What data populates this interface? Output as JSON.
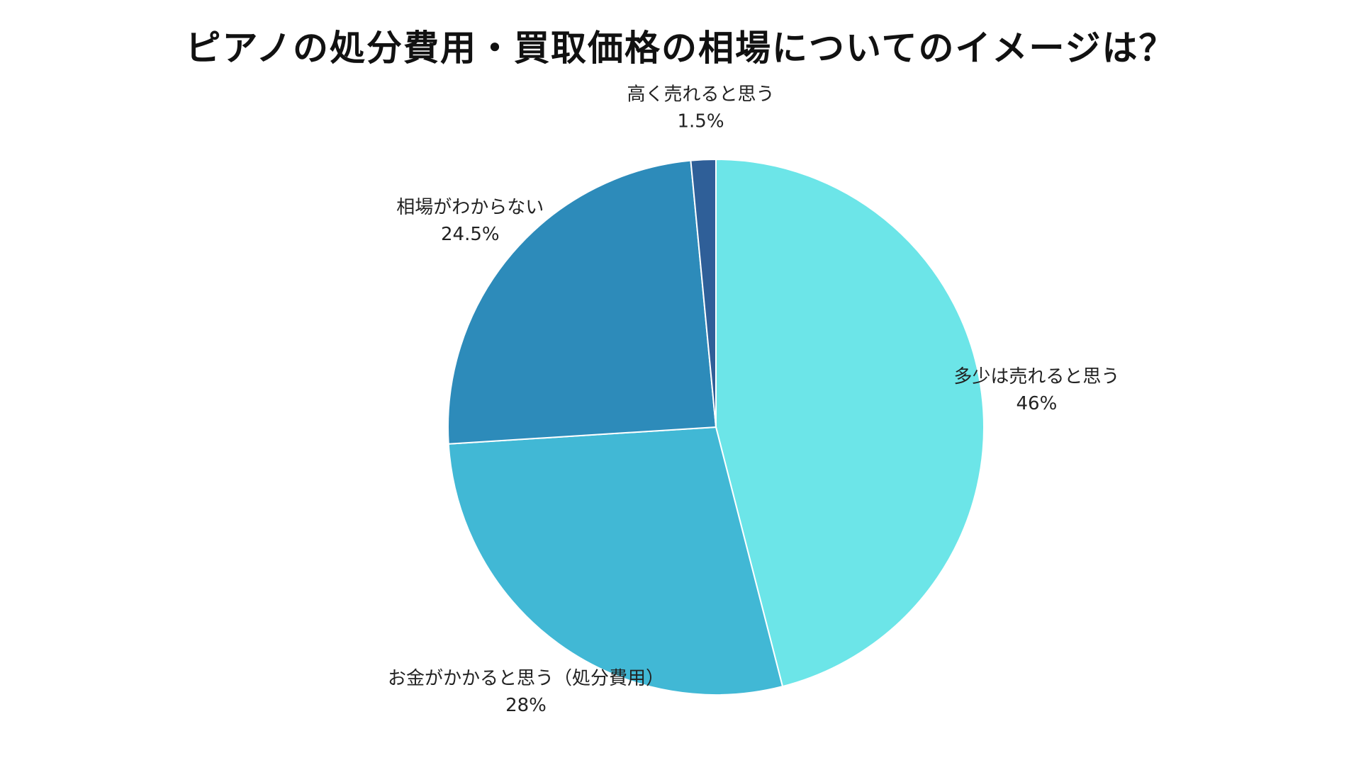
{
  "chart_data": {
    "type": "pie",
    "title": "ピアノの処分費用・買取価格の相場についてのイメージは？",
    "start_angle_deg": 0,
    "direction": "clockwise",
    "slices": [
      {
        "label": "多少は売れると思う",
        "value": 46,
        "value_label": "46%",
        "color": "#6CE5E8"
      },
      {
        "label": "お金がかかると思う（処分費用）",
        "value": 28,
        "value_label": "28%",
        "color": "#41B8D5"
      },
      {
        "label": "相場がわからない",
        "value": 24.5,
        "value_label": "24.5%",
        "color": "#2D8BBA"
      },
      {
        "label": "高く売れると思う",
        "value": 1.5,
        "value_label": "1.5%",
        "color": "#2F5F98"
      }
    ]
  }
}
